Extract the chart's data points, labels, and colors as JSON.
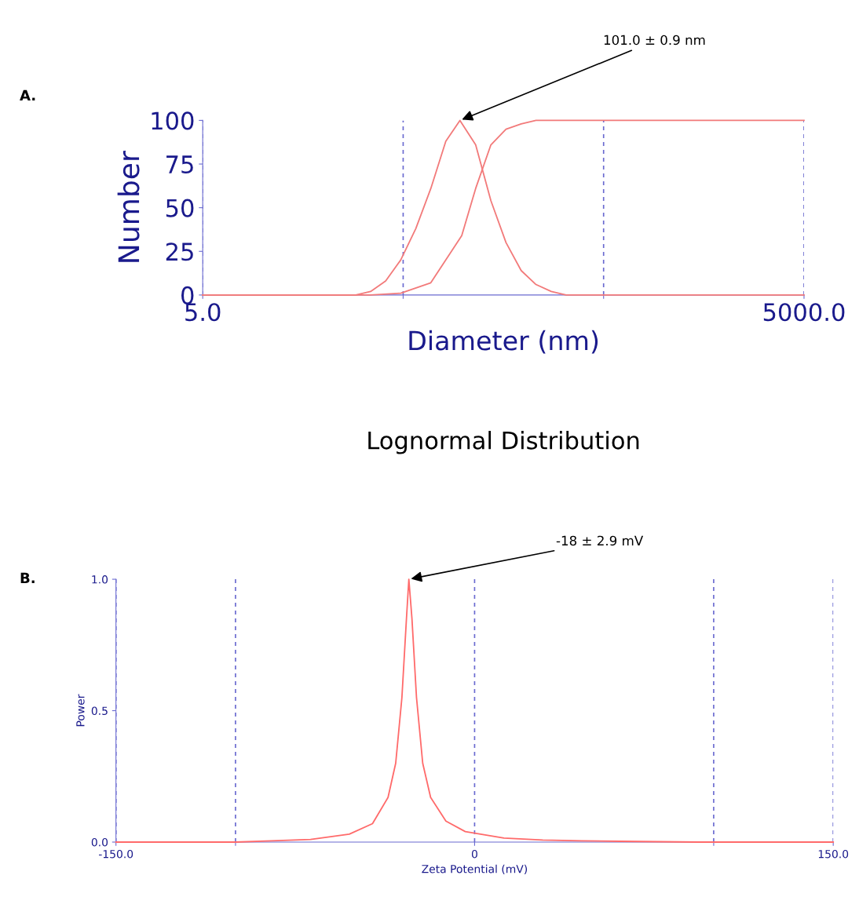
{
  "chart_data": [
    {
      "type": "line",
      "title": "Lognormal Distribution",
      "xlabel": "Diameter (nm)",
      "ylabel": "Number",
      "log": "x",
      "xlim": [
        5,
        5000
      ],
      "ylim": [
        0,
        100
      ],
      "xticks": [
        {
          "value": 5,
          "label": "5.0"
        },
        {
          "value": 50,
          "label": null
        },
        {
          "value": 500,
          "label": null
        },
        {
          "value": 5000,
          "label": "5000.0"
        }
      ],
      "yticks": [
        0,
        25,
        50,
        75,
        100
      ],
      "grid": "x",
      "line_style": "solid",
      "marker": "none",
      "legend": false,
      "annotations": [
        {
          "text": "101.0 ± 0.9 nm",
          "x": 96,
          "y": 100
        },
        "A."
      ],
      "series": [
        {
          "color": "#f27a7a",
          "x": [
            5,
            29,
            34.4,
            40.9,
            48.6,
            57.8,
            68.7,
            81.6,
            96,
            115,
            137,
            163,
            194,
            230,
            274,
            325,
            5000
          ],
          "values": [
            0,
            0,
            2,
            8,
            20,
            38,
            61,
            88,
            100,
            86,
            54,
            30,
            14,
            6,
            2,
            0,
            0
          ]
        },
        {
          "color": "#f27a7a",
          "x": [
            5,
            34.4,
            48.6,
            68.7,
            98,
            115,
            137,
            163,
            194,
            230,
            5000
          ],
          "values": [
            0,
            0,
            1,
            7,
            34,
            61,
            86,
            95,
            98,
            100,
            100
          ]
        }
      ]
    },
    {
      "type": "line",
      "xlabel": "Zeta Potential (mV)",
      "ylabel": "Power",
      "xlim": [
        -150,
        150
      ],
      "ylim": [
        0,
        1
      ],
      "xticks": [
        {
          "value": -150,
          "label": "-150.0"
        },
        {
          "value": -100,
          "label": null
        },
        0,
        {
          "value": 100,
          "label": null
        },
        {
          "value": 150,
          "label": "150.0"
        }
      ],
      "yticks": [
        {
          "value": 0,
          "label": "0.0"
        },
        0.5,
        {
          "value": 1,
          "label": "1.0"
        }
      ],
      "grid": "x",
      "line_style": "solid",
      "marker": "none",
      "legend": false,
      "annotations": [
        {
          "text": "-18 ± 2.9 mV",
          "x": -27.5,
          "y": 1.0
        },
        "B."
      ],
      "series": [
        {
          "color": "#ff6a6a",
          "x": [
            -150,
            -100,
            -84.8,
            -68.6,
            -52.4,
            -42.7,
            -36.2,
            -33,
            -30.4,
            -28.5,
            -27.5,
            -26.2,
            -24.3,
            -21.7,
            -18.4,
            -12,
            -3.9,
            12.3,
            28.5,
            44.7,
            60.9,
            93.2,
            150
          ],
          "values": [
            0,
            0,
            0.005,
            0.01,
            0.03,
            0.07,
            0.17,
            0.3,
            0.55,
            0.85,
            1.0,
            0.85,
            0.55,
            0.3,
            0.17,
            0.08,
            0.04,
            0.015,
            0.008,
            0.005,
            0.003,
            0,
            0
          ]
        }
      ]
    }
  ]
}
